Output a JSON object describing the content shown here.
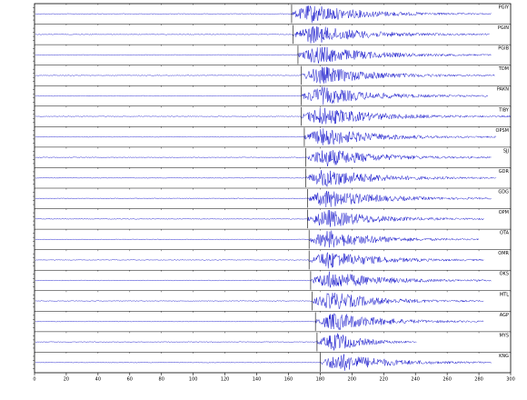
{
  "chart_data": {
    "type": "seismogram",
    "color": "#1a1acc",
    "xlim": [
      0,
      300
    ],
    "xticks": [
      0,
      20,
      40,
      60,
      80,
      100,
      120,
      140,
      160,
      180,
      200,
      220,
      240,
      260,
      280,
      300
    ],
    "traces": [
      {
        "name": "PGIY",
        "onset": 162,
        "end": 288
      },
      {
        "name": "PGIN",
        "onset": 163,
        "end": 287
      },
      {
        "name": "PGIB",
        "onset": 166,
        "end": 288
      },
      {
        "name": "TDM",
        "onset": 168,
        "end": 290
      },
      {
        "name": "PAKN",
        "onset": 168,
        "end": 286
      },
      {
        "name": "TIBY",
        "onset": 168,
        "end": 300
      },
      {
        "name": "OPSM",
        "onset": 170,
        "end": 291
      },
      {
        "name": "SJJ",
        "onset": 171,
        "end": 288
      },
      {
        "name": "GDR",
        "onset": 171,
        "end": 291
      },
      {
        "name": "GDG",
        "onset": 172,
        "end": 288
      },
      {
        "name": "OPM",
        "onset": 172,
        "end": 283
      },
      {
        "name": "OTA",
        "onset": 173,
        "end": 280
      },
      {
        "name": "OMR",
        "onset": 173,
        "end": 283
      },
      {
        "name": "OKS",
        "onset": 174,
        "end": 288
      },
      {
        "name": "MTL",
        "onset": 175,
        "end": 283
      },
      {
        "name": "AGP",
        "onset": 177,
        "end": 283
      },
      {
        "name": "MYS",
        "onset": 178,
        "end": 241
      },
      {
        "name": "KNG",
        "onset": 180,
        "end": 288
      }
    ]
  }
}
